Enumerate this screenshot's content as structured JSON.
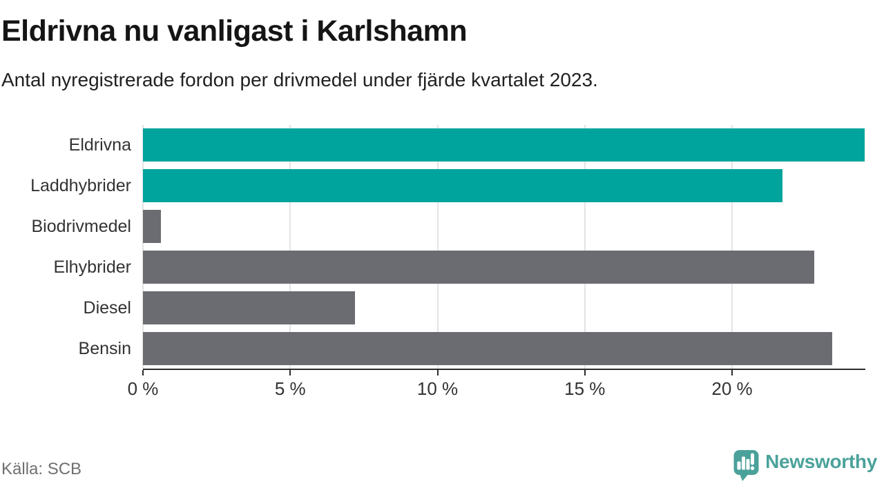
{
  "chart_data": {
    "type": "bar",
    "orientation": "horizontal",
    "title": "Eldrivna nu vanligast i Karlshamn",
    "subtitle": "Antal nyregistrerade fordon per drivmedel under fjärde kvartalet 2023.",
    "categories": [
      "Eldrivna",
      "Laddhybrider",
      "Biodrivmedel",
      "Elhybrider",
      "Diesel",
      "Bensin"
    ],
    "values": [
      24.5,
      21.7,
      0.6,
      22.8,
      7.2,
      23.4
    ],
    "unit": "%",
    "bar_colors": [
      "#00a49c",
      "#00a49c",
      "#6b6b72",
      "#6b6b72",
      "#6b6b72",
      "#6b6b72"
    ],
    "xlim": [
      0,
      24.5
    ],
    "x_ticks": [
      {
        "value": 0,
        "label": "0 %"
      },
      {
        "value": 5,
        "label": "5 %"
      },
      {
        "value": 10,
        "label": "10 %"
      },
      {
        "value": 15,
        "label": "15 %"
      },
      {
        "value": 20,
        "label": "20 %"
      }
    ],
    "xlabel": "",
    "ylabel": "",
    "grid": "vertical",
    "legend": "none"
  },
  "footer": {
    "source": "Källa: SCB",
    "logo_text": "Newsworthy"
  },
  "colors": {
    "accent_teal": "#00a49c",
    "bar_gray": "#6b6b72",
    "logo_teal": "#4ba29b",
    "gridline": "#e3e3e3",
    "axis": "#2b2b2b",
    "text_dark": "#151515",
    "text_label": "#333333",
    "text_source": "#6f6f6f"
  },
  "icons": {
    "logo_icon": "newsworthy-speech-bubble-bar-chart-icon"
  }
}
